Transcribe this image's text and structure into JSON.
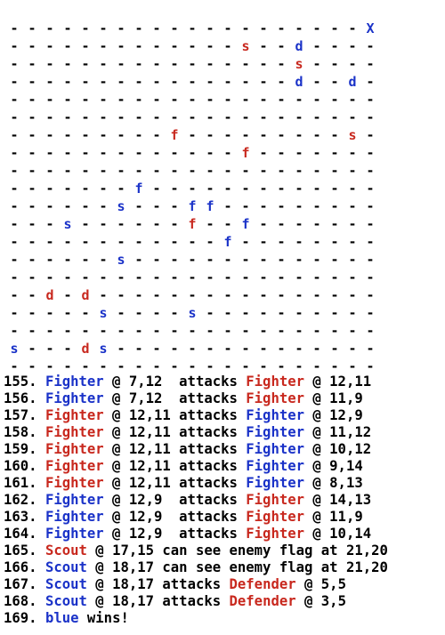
{
  "colors": {
    "blue": "#1a32c8",
    "red": "#c8281e",
    "text": "#000000"
  },
  "board": {
    "cols": 21,
    "rows": 20,
    "empty_symbol": "-",
    "pieces": [
      {
        "symbol": "X",
        "team": "blue",
        "col": 20,
        "row": 0
      },
      {
        "symbol": "s",
        "team": "red",
        "col": 13,
        "row": 1
      },
      {
        "symbol": "d",
        "team": "blue",
        "col": 16,
        "row": 1
      },
      {
        "symbol": "s",
        "team": "red",
        "col": 16,
        "row": 2
      },
      {
        "symbol": "d",
        "team": "blue",
        "col": 16,
        "row": 3
      },
      {
        "symbol": "d",
        "team": "blue",
        "col": 19,
        "row": 3
      },
      {
        "symbol": "f",
        "team": "red",
        "col": 9,
        "row": 6
      },
      {
        "symbol": "s",
        "team": "red",
        "col": 19,
        "row": 6
      },
      {
        "symbol": "f",
        "team": "red",
        "col": 13,
        "row": 7
      },
      {
        "symbol": "f",
        "team": "blue",
        "col": 7,
        "row": 9
      },
      {
        "symbol": "s",
        "team": "blue",
        "col": 6,
        "row": 10
      },
      {
        "symbol": "f",
        "team": "blue",
        "col": 10,
        "row": 10
      },
      {
        "symbol": "f",
        "team": "blue",
        "col": 11,
        "row": 10
      },
      {
        "symbol": "s",
        "team": "blue",
        "col": 3,
        "row": 11
      },
      {
        "symbol": "f",
        "team": "red",
        "col": 10,
        "row": 11
      },
      {
        "symbol": "f",
        "team": "blue",
        "col": 13,
        "row": 11
      },
      {
        "symbol": "f",
        "team": "blue",
        "col": 12,
        "row": 12
      },
      {
        "symbol": "s",
        "team": "blue",
        "col": 6,
        "row": 13
      },
      {
        "symbol": "d",
        "team": "red",
        "col": 2,
        "row": 15
      },
      {
        "symbol": "d",
        "team": "red",
        "col": 4,
        "row": 15
      },
      {
        "symbol": "s",
        "team": "blue",
        "col": 5,
        "row": 16
      },
      {
        "symbol": "s",
        "team": "blue",
        "col": 10,
        "row": 16
      },
      {
        "symbol": "s",
        "team": "blue",
        "col": 0,
        "row": 18
      },
      {
        "symbol": "d",
        "team": "red",
        "col": 4,
        "row": 18
      },
      {
        "symbol": "s",
        "team": "blue",
        "col": 5,
        "row": 18
      }
    ]
  },
  "log": [
    {
      "parts": [
        {
          "t": "155. ",
          "c": "text"
        },
        {
          "t": "Fighter",
          "c": "blue"
        },
        {
          "t": " @ 7,12  attacks ",
          "c": "text"
        },
        {
          "t": "Fighter",
          "c": "red"
        },
        {
          "t": " @ 12,11",
          "c": "text"
        }
      ]
    },
    {
      "parts": [
        {
          "t": "156. ",
          "c": "text"
        },
        {
          "t": "Fighter",
          "c": "blue"
        },
        {
          "t": " @ 7,12  attacks ",
          "c": "text"
        },
        {
          "t": "Fighter",
          "c": "red"
        },
        {
          "t": " @ 11,9",
          "c": "text"
        }
      ]
    },
    {
      "parts": [
        {
          "t": "157. ",
          "c": "text"
        },
        {
          "t": "Fighter",
          "c": "red"
        },
        {
          "t": " @ 12,11 attacks ",
          "c": "text"
        },
        {
          "t": "Fighter",
          "c": "blue"
        },
        {
          "t": " @ 12,9",
          "c": "text"
        }
      ]
    },
    {
      "parts": [
        {
          "t": "158. ",
          "c": "text"
        },
        {
          "t": "Fighter",
          "c": "red"
        },
        {
          "t": " @ 12,11 attacks ",
          "c": "text"
        },
        {
          "t": "Fighter",
          "c": "blue"
        },
        {
          "t": " @ 11,12",
          "c": "text"
        }
      ]
    },
    {
      "parts": [
        {
          "t": "159. ",
          "c": "text"
        },
        {
          "t": "Fighter",
          "c": "red"
        },
        {
          "t": " @ 12,11 attacks ",
          "c": "text"
        },
        {
          "t": "Fighter",
          "c": "blue"
        },
        {
          "t": " @ 10,12",
          "c": "text"
        }
      ]
    },
    {
      "parts": [
        {
          "t": "160. ",
          "c": "text"
        },
        {
          "t": "Fighter",
          "c": "red"
        },
        {
          "t": " @ 12,11 attacks ",
          "c": "text"
        },
        {
          "t": "Fighter",
          "c": "blue"
        },
        {
          "t": " @ 9,14",
          "c": "text"
        }
      ]
    },
    {
      "parts": [
        {
          "t": "161. ",
          "c": "text"
        },
        {
          "t": "Fighter",
          "c": "red"
        },
        {
          "t": " @ 12,11 attacks ",
          "c": "text"
        },
        {
          "t": "Fighter",
          "c": "blue"
        },
        {
          "t": " @ 8,13",
          "c": "text"
        }
      ]
    },
    {
      "parts": [
        {
          "t": "162. ",
          "c": "text"
        },
        {
          "t": "Fighter",
          "c": "blue"
        },
        {
          "t": " @ 12,9  attacks ",
          "c": "text"
        },
        {
          "t": "Fighter",
          "c": "red"
        },
        {
          "t": " @ 14,13",
          "c": "text"
        }
      ]
    },
    {
      "parts": [
        {
          "t": "163. ",
          "c": "text"
        },
        {
          "t": "Fighter",
          "c": "blue"
        },
        {
          "t": " @ 12,9  attacks ",
          "c": "text"
        },
        {
          "t": "Fighter",
          "c": "red"
        },
        {
          "t": " @ 11,9",
          "c": "text"
        }
      ]
    },
    {
      "parts": [
        {
          "t": "164. ",
          "c": "text"
        },
        {
          "t": "Fighter",
          "c": "blue"
        },
        {
          "t": " @ 12,9  attacks ",
          "c": "text"
        },
        {
          "t": "Fighter",
          "c": "red"
        },
        {
          "t": " @ 10,14",
          "c": "text"
        }
      ]
    },
    {
      "parts": [
        {
          "t": "165. ",
          "c": "text"
        },
        {
          "t": "Scout",
          "c": "red"
        },
        {
          "t": " @ 17,15 can see enemy flag at 21,20",
          "c": "text"
        }
      ]
    },
    {
      "parts": [
        {
          "t": "166. ",
          "c": "text"
        },
        {
          "t": "Scout",
          "c": "blue"
        },
        {
          "t": " @ 18,17 can see enemy flag at 21,20",
          "c": "text"
        }
      ]
    },
    {
      "parts": [
        {
          "t": "167. ",
          "c": "text"
        },
        {
          "t": "Scout",
          "c": "blue"
        },
        {
          "t": " @ 18,17 attacks ",
          "c": "text"
        },
        {
          "t": "Defender",
          "c": "red"
        },
        {
          "t": " @ 5,5",
          "c": "text"
        }
      ]
    },
    {
      "parts": [
        {
          "t": "168. ",
          "c": "text"
        },
        {
          "t": "Scout",
          "c": "blue"
        },
        {
          "t": " @ 18,17 attacks ",
          "c": "text"
        },
        {
          "t": "Defender",
          "c": "red"
        },
        {
          "t": " @ 3,5",
          "c": "text"
        }
      ]
    },
    {
      "parts": [
        {
          "t": "169. ",
          "c": "text"
        },
        {
          "t": "blue",
          "c": "blue"
        },
        {
          "t": " wins!",
          "c": "text"
        }
      ]
    }
  ]
}
